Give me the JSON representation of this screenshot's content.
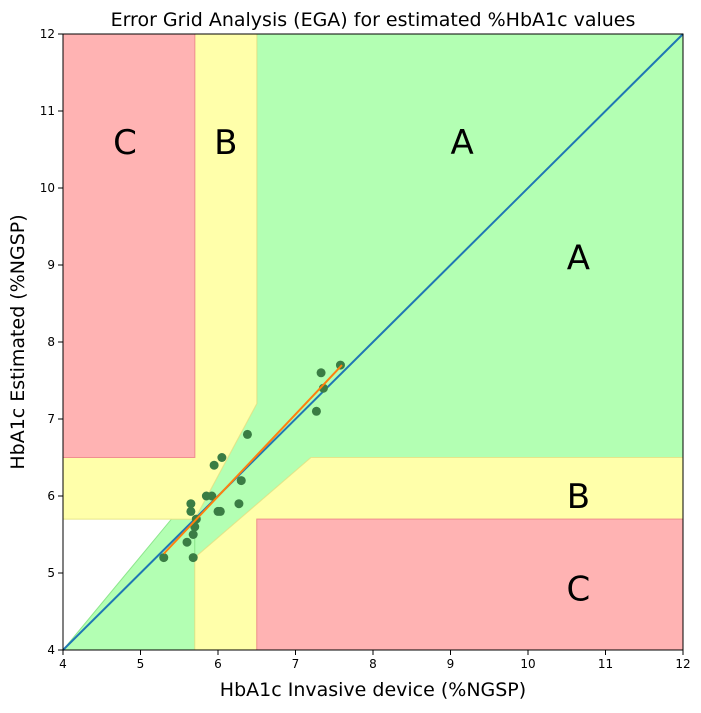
{
  "chart_data": {
    "type": "scatter",
    "title": "Error Grid Analysis (EGA) for estimated %HbA1c values",
    "xlabel": "HbA1c Invasive device (%NGSP)",
    "ylabel": "HbA1c Estimated (%NGSP)",
    "xlim": [
      4,
      12
    ],
    "ylim": [
      4,
      12
    ],
    "xticks": [
      "4",
      "5",
      "6",
      "7",
      "8",
      "9",
      "10",
      "11",
      "12"
    ],
    "yticks": [
      "4",
      "5",
      "6",
      "7",
      "8",
      "9",
      "10",
      "11",
      "12"
    ],
    "grid": false,
    "colors": {
      "zone_A": "#b3ffb3",
      "zone_B": "#ffffaa",
      "zone_C": "#ffb3b3",
      "points": "#3a7d44",
      "identity_line": "#1f77b4",
      "fit_line": "#ff7f0e"
    },
    "zones": [
      {
        "label": "A",
        "polygon": [
          [
            4,
            4
          ],
          [
            5.4,
            5.7
          ],
          [
            5.7,
            5.7
          ],
          [
            5.7,
            4
          ]
        ]
      },
      {
        "label": "A",
        "polygon": [
          [
            6.5,
            12
          ],
          [
            12,
            12
          ],
          [
            12,
            6.5
          ],
          [
            7.2,
            6.5
          ],
          [
            5.7,
            5.2
          ],
          [
            5.7,
            5.7
          ],
          [
            6.5,
            7.2
          ]
        ]
      },
      {
        "label": "B",
        "polygon": [
          [
            5.7,
            12
          ],
          [
            6.5,
            12
          ],
          [
            6.5,
            7.2
          ],
          [
            5.7,
            5.7
          ],
          [
            5.4,
            5.7
          ],
          [
            4,
            5.7
          ],
          [
            4,
            6.5
          ],
          [
            5.7,
            6.5
          ]
        ]
      },
      {
        "label": "B",
        "polygon": [
          [
            5.7,
            4
          ],
          [
            6.5,
            4
          ],
          [
            6.5,
            5.7
          ],
          [
            12,
            5.7
          ],
          [
            12,
            6.5
          ],
          [
            7.2,
            6.5
          ],
          [
            5.7,
            5.2
          ]
        ]
      },
      {
        "label": "C",
        "polygon": [
          [
            4,
            6.5
          ],
          [
            5.7,
            6.5
          ],
          [
            5.7,
            12
          ],
          [
            4,
            12
          ]
        ]
      },
      {
        "label": "C",
        "polygon": [
          [
            6.5,
            4
          ],
          [
            12,
            4
          ],
          [
            12,
            5.7
          ],
          [
            6.5,
            5.7
          ]
        ]
      }
    ],
    "zone_labels": [
      {
        "text": "C",
        "x": 4.8,
        "y": 10.6
      },
      {
        "text": "B",
        "x": 6.1,
        "y": 10.6
      },
      {
        "text": "A",
        "x": 9.15,
        "y": 10.6
      },
      {
        "text": "A",
        "x": 10.65,
        "y": 9.1
      },
      {
        "text": "B",
        "x": 10.65,
        "y": 6.0
      },
      {
        "text": "C",
        "x": 10.65,
        "y": 4.8
      }
    ],
    "series": [
      {
        "type": "scatter",
        "points": [
          [
            5.3,
            5.2
          ],
          [
            5.6,
            5.4
          ],
          [
            5.65,
            5.8
          ],
          [
            5.65,
            5.9
          ],
          [
            5.68,
            5.5
          ],
          [
            5.68,
            5.2
          ],
          [
            5.7,
            5.6
          ],
          [
            5.72,
            5.7
          ],
          [
            5.85,
            6.0
          ],
          [
            5.92,
            6.0
          ],
          [
            5.95,
            6.4
          ],
          [
            6.0,
            5.8
          ],
          [
            6.03,
            5.8
          ],
          [
            6.05,
            6.5
          ],
          [
            6.27,
            5.9
          ],
          [
            6.3,
            6.2
          ],
          [
            6.38,
            6.8
          ],
          [
            7.27,
            7.1
          ],
          [
            7.33,
            7.6
          ],
          [
            7.36,
            7.4
          ],
          [
            7.58,
            7.7
          ]
        ]
      },
      {
        "type": "line",
        "points": [
          [
            4,
            4
          ],
          [
            12,
            12
          ]
        ]
      },
      {
        "type": "line",
        "points": [
          [
            5.3,
            5.25
          ],
          [
            7.6,
            7.7
          ]
        ]
      }
    ]
  }
}
